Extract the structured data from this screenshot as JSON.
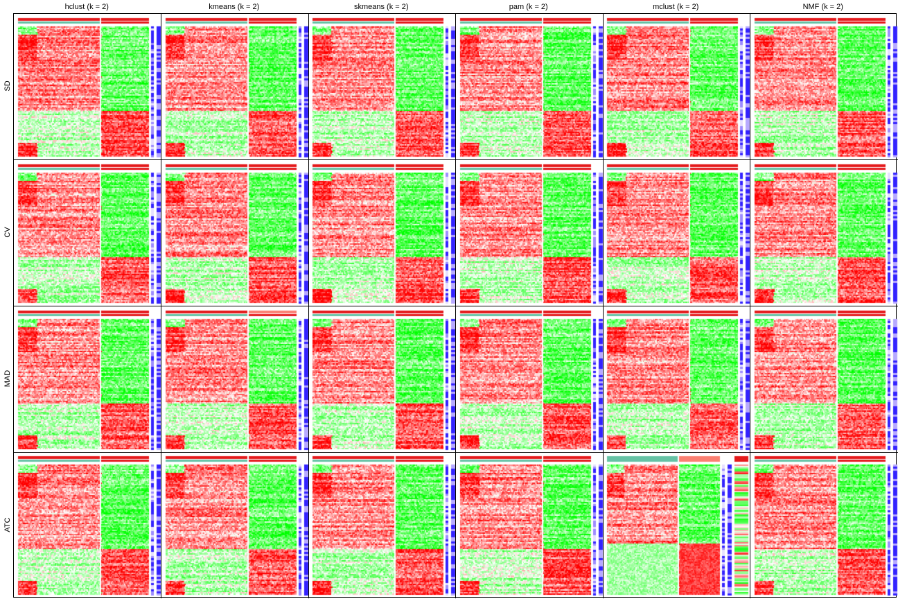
{
  "chart_data": {
    "type": "heatmap",
    "title": "",
    "columns": [
      "hclust (k = 2)",
      "kmeans (k = 2)",
      "skmeans (k = 2)",
      "pam (k = 2)",
      "mclust (k = 2)",
      "NMF (k = 2)"
    ],
    "rows": [
      "SD",
      "CV",
      "MAD",
      "ATC"
    ],
    "k": 2,
    "cluster_split": {
      "first_group_fraction": 0.63,
      "second_group_fraction": 0.37
    },
    "row_blocks": {
      "upper_block_fraction": 0.64,
      "lower_block_fraction": 0.36
    },
    "pattern": {
      "group1_upper": "red",
      "group2_upper": "green",
      "group1_lower": "light green",
      "group2_lower": "red"
    },
    "exceptions": [
      {
        "row": "ATC",
        "column": "mclust (k = 2)",
        "note": "third annotation track, mixed red/green rows"
      }
    ],
    "colors": {
      "high": "#ff0000",
      "mid": "#ffffff",
      "low": "#00ff00",
      "annotation_class1": "#e41a1c",
      "annotation_class2": "#66c2a5",
      "annotation_alt": "#fb8072",
      "row_annotation_high": "#3322ff",
      "row_annotation_low": "#e6e0ff"
    }
  }
}
